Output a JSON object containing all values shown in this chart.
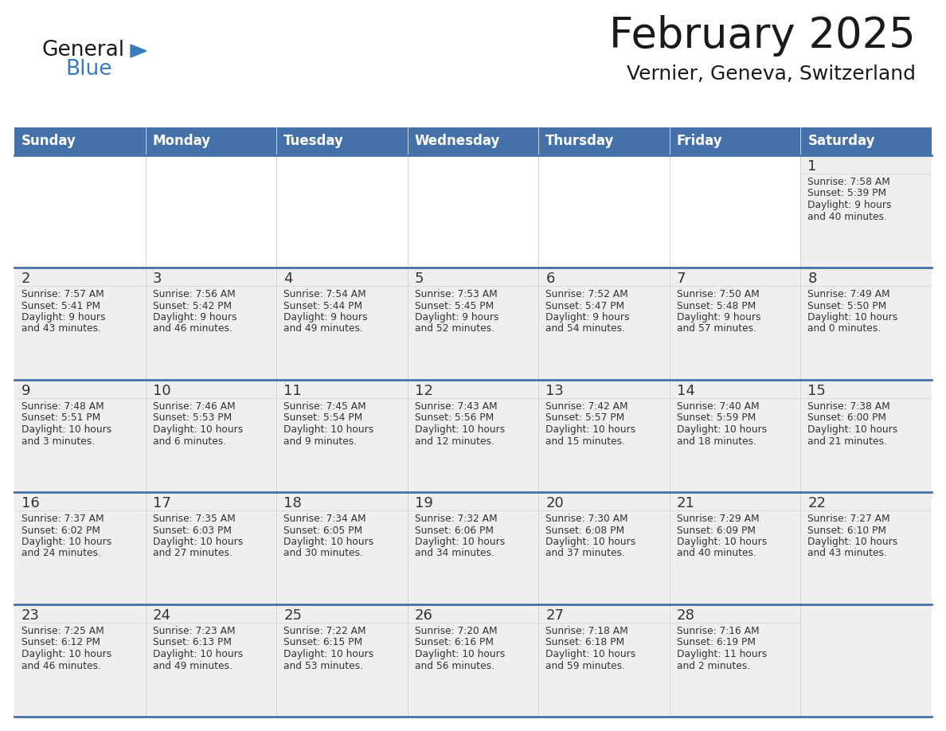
{
  "title": "February 2025",
  "subtitle": "Vernier, Geneva, Switzerland",
  "days_of_week": [
    "Sunday",
    "Monday",
    "Tuesday",
    "Wednesday",
    "Thursday",
    "Friday",
    "Saturday"
  ],
  "header_bg": "#4472A8",
  "header_text": "#ffffff",
  "cell_bg_light": "#efefef",
  "cell_bg_white": "#ffffff",
  "cell_border_top": "#4472A8",
  "cell_border_inner": "#4472A8",
  "text_color": "#333333",
  "title_color": "#1a1a1a",
  "logo_general_color": "#1a1a1a",
  "logo_blue_color": "#3a7abf",
  "weeks": [
    [
      {
        "day": null,
        "sunrise": null,
        "sunset": null,
        "daylight": null
      },
      {
        "day": null,
        "sunrise": null,
        "sunset": null,
        "daylight": null
      },
      {
        "day": null,
        "sunrise": null,
        "sunset": null,
        "daylight": null
      },
      {
        "day": null,
        "sunrise": null,
        "sunset": null,
        "daylight": null
      },
      {
        "day": null,
        "sunrise": null,
        "sunset": null,
        "daylight": null
      },
      {
        "day": null,
        "sunrise": null,
        "sunset": null,
        "daylight": null
      },
      {
        "day": 1,
        "sunrise": "7:58 AM",
        "sunset": "5:39 PM",
        "daylight": "9 hours and 40 minutes."
      }
    ],
    [
      {
        "day": 2,
        "sunrise": "7:57 AM",
        "sunset": "5:41 PM",
        "daylight": "9 hours and 43 minutes."
      },
      {
        "day": 3,
        "sunrise": "7:56 AM",
        "sunset": "5:42 PM",
        "daylight": "9 hours and 46 minutes."
      },
      {
        "day": 4,
        "sunrise": "7:54 AM",
        "sunset": "5:44 PM",
        "daylight": "9 hours and 49 minutes."
      },
      {
        "day": 5,
        "sunrise": "7:53 AM",
        "sunset": "5:45 PM",
        "daylight": "9 hours and 52 minutes."
      },
      {
        "day": 6,
        "sunrise": "7:52 AM",
        "sunset": "5:47 PM",
        "daylight": "9 hours and 54 minutes."
      },
      {
        "day": 7,
        "sunrise": "7:50 AM",
        "sunset": "5:48 PM",
        "daylight": "9 hours and 57 minutes."
      },
      {
        "day": 8,
        "sunrise": "7:49 AM",
        "sunset": "5:50 PM",
        "daylight": "10 hours and 0 minutes."
      }
    ],
    [
      {
        "day": 9,
        "sunrise": "7:48 AM",
        "sunset": "5:51 PM",
        "daylight": "10 hours and 3 minutes."
      },
      {
        "day": 10,
        "sunrise": "7:46 AM",
        "sunset": "5:53 PM",
        "daylight": "10 hours and 6 minutes."
      },
      {
        "day": 11,
        "sunrise": "7:45 AM",
        "sunset": "5:54 PM",
        "daylight": "10 hours and 9 minutes."
      },
      {
        "day": 12,
        "sunrise": "7:43 AM",
        "sunset": "5:56 PM",
        "daylight": "10 hours and 12 minutes."
      },
      {
        "day": 13,
        "sunrise": "7:42 AM",
        "sunset": "5:57 PM",
        "daylight": "10 hours and 15 minutes."
      },
      {
        "day": 14,
        "sunrise": "7:40 AM",
        "sunset": "5:59 PM",
        "daylight": "10 hours and 18 minutes."
      },
      {
        "day": 15,
        "sunrise": "7:38 AM",
        "sunset": "6:00 PM",
        "daylight": "10 hours and 21 minutes."
      }
    ],
    [
      {
        "day": 16,
        "sunrise": "7:37 AM",
        "sunset": "6:02 PM",
        "daylight": "10 hours and 24 minutes."
      },
      {
        "day": 17,
        "sunrise": "7:35 AM",
        "sunset": "6:03 PM",
        "daylight": "10 hours and 27 minutes."
      },
      {
        "day": 18,
        "sunrise": "7:34 AM",
        "sunset": "6:05 PM",
        "daylight": "10 hours and 30 minutes."
      },
      {
        "day": 19,
        "sunrise": "7:32 AM",
        "sunset": "6:06 PM",
        "daylight": "10 hours and 34 minutes."
      },
      {
        "day": 20,
        "sunrise": "7:30 AM",
        "sunset": "6:08 PM",
        "daylight": "10 hours and 37 minutes."
      },
      {
        "day": 21,
        "sunrise": "7:29 AM",
        "sunset": "6:09 PM",
        "daylight": "10 hours and 40 minutes."
      },
      {
        "day": 22,
        "sunrise": "7:27 AM",
        "sunset": "6:10 PM",
        "daylight": "10 hours and 43 minutes."
      }
    ],
    [
      {
        "day": 23,
        "sunrise": "7:25 AM",
        "sunset": "6:12 PM",
        "daylight": "10 hours and 46 minutes."
      },
      {
        "day": 24,
        "sunrise": "7:23 AM",
        "sunset": "6:13 PM",
        "daylight": "10 hours and 49 minutes."
      },
      {
        "day": 25,
        "sunrise": "7:22 AM",
        "sunset": "6:15 PM",
        "daylight": "10 hours and 53 minutes."
      },
      {
        "day": 26,
        "sunrise": "7:20 AM",
        "sunset": "6:16 PM",
        "daylight": "10 hours and 56 minutes."
      },
      {
        "day": 27,
        "sunrise": "7:18 AM",
        "sunset": "6:18 PM",
        "daylight": "10 hours and 59 minutes."
      },
      {
        "day": 28,
        "sunrise": "7:16 AM",
        "sunset": "6:19 PM",
        "daylight": "11 hours and 2 minutes."
      },
      {
        "day": null,
        "sunrise": null,
        "sunset": null,
        "daylight": null
      }
    ]
  ]
}
